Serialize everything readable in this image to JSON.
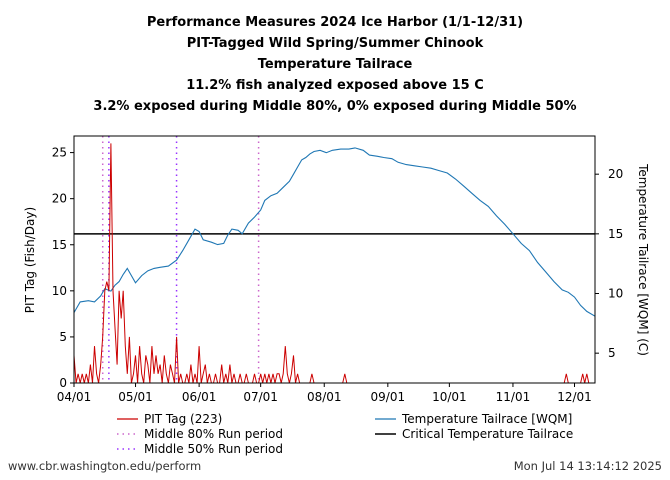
{
  "chart_data": {
    "type": "line",
    "title_lines": [
      "Performance Measures 2024 Ice Harbor (1/1-12/31)",
      "PIT-Tagged Wild Spring/Summer Chinook",
      "Temperature Tailrace",
      "11.2% fish analyzed exposed above 15 C",
      "3.2% exposed during Middle 80%, 0% exposed during Middle 50%"
    ],
    "ylabel_left": "PIT Tag (Fish/Day)",
    "ylabel_right": "Temperature Tailrace [WQM] (C)",
    "x_ticks": [
      "04/01",
      "05/01",
      "06/01",
      "07/01",
      "08/01",
      "09/01",
      "10/01",
      "11/01",
      "12/01"
    ],
    "x_range": [
      "2024-04-01",
      "2024-12-11"
    ],
    "ylim_left": [
      0,
      26.8
    ],
    "yticks_left": [
      0,
      5,
      10,
      15,
      20,
      25
    ],
    "ylim_right": [
      2.5,
      23.2
    ],
    "yticks_right": [
      5,
      10,
      15,
      20
    ],
    "grid": false,
    "legend_position": "bottom",
    "colors": {
      "pit": "#cc0000",
      "temp": "#1f77b4",
      "critical": "#000000",
      "middle80": "#cc66cc",
      "middle50": "#9933ff"
    },
    "legend": {
      "pit": "PIT Tag (223)",
      "middle80": "Middle 80% Run period",
      "middle50": "Middle 50% Run period",
      "temp": "Temperature Tailrace [WQM]",
      "critical": "Critical Temperature Tailrace"
    },
    "critical_temperature": 15,
    "middle80_period": [
      "2024-04-15",
      "2024-06-30"
    ],
    "middle50_period": [
      "2024-04-18",
      "2024-05-21"
    ],
    "temperature_series": {
      "name": "Temperature Tailrace [WQM]",
      "points": [
        [
          "2024-04-01",
          8.4
        ],
        [
          "2024-04-04",
          9.3
        ],
        [
          "2024-04-08",
          9.4
        ],
        [
          "2024-04-11",
          9.3
        ],
        [
          "2024-04-14",
          9.8
        ],
        [
          "2024-04-16",
          10.4
        ],
        [
          "2024-04-19",
          10.2
        ],
        [
          "2024-04-21",
          10.7
        ],
        [
          "2024-04-23",
          11.0
        ],
        [
          "2024-04-25",
          11.6
        ],
        [
          "2024-04-27",
          12.1
        ],
        [
          "2024-04-29",
          11.5
        ],
        [
          "2024-05-01",
          10.9
        ],
        [
          "2024-05-04",
          11.5
        ],
        [
          "2024-05-07",
          11.9
        ],
        [
          "2024-05-10",
          12.1
        ],
        [
          "2024-05-13",
          12.2
        ],
        [
          "2024-05-17",
          12.3
        ],
        [
          "2024-05-21",
          12.8
        ],
        [
          "2024-05-24",
          13.6
        ],
        [
          "2024-05-27",
          14.5
        ],
        [
          "2024-05-30",
          15.4
        ],
        [
          "2024-06-01",
          15.2
        ],
        [
          "2024-06-03",
          14.5
        ],
        [
          "2024-06-07",
          14.3
        ],
        [
          "2024-06-10",
          14.1
        ],
        [
          "2024-06-13",
          14.2
        ],
        [
          "2024-06-15",
          14.9
        ],
        [
          "2024-06-17",
          15.4
        ],
        [
          "2024-06-20",
          15.3
        ],
        [
          "2024-06-22",
          15.0
        ],
        [
          "2024-06-25",
          15.9
        ],
        [
          "2024-06-28",
          16.4
        ],
        [
          "2024-07-01",
          17.0
        ],
        [
          "2024-07-03",
          17.8
        ],
        [
          "2024-07-06",
          18.2
        ],
        [
          "2024-07-09",
          18.4
        ],
        [
          "2024-07-12",
          18.9
        ],
        [
          "2024-07-15",
          19.4
        ],
        [
          "2024-07-17",
          20.0
        ],
        [
          "2024-07-19",
          20.6
        ],
        [
          "2024-07-21",
          21.2
        ],
        [
          "2024-07-23",
          21.4
        ],
        [
          "2024-07-25",
          21.7
        ],
        [
          "2024-07-27",
          21.9
        ],
        [
          "2024-07-30",
          22.0
        ],
        [
          "2024-08-02",
          21.8
        ],
        [
          "2024-08-05",
          22.0
        ],
        [
          "2024-08-09",
          22.1
        ],
        [
          "2024-08-13",
          22.1
        ],
        [
          "2024-08-16",
          22.2
        ],
        [
          "2024-08-20",
          22.0
        ],
        [
          "2024-08-23",
          21.6
        ],
        [
          "2024-08-27",
          21.5
        ],
        [
          "2024-08-30",
          21.4
        ],
        [
          "2024-09-03",
          21.3
        ],
        [
          "2024-09-06",
          21.0
        ],
        [
          "2024-09-10",
          20.8
        ],
        [
          "2024-09-14",
          20.7
        ],
        [
          "2024-09-18",
          20.6
        ],
        [
          "2024-09-22",
          20.5
        ],
        [
          "2024-09-26",
          20.3
        ],
        [
          "2024-09-30",
          20.1
        ],
        [
          "2024-10-04",
          19.6
        ],
        [
          "2024-10-08",
          19.0
        ],
        [
          "2024-10-12",
          18.4
        ],
        [
          "2024-10-16",
          17.8
        ],
        [
          "2024-10-20",
          17.3
        ],
        [
          "2024-10-24",
          16.5
        ],
        [
          "2024-10-28",
          15.8
        ],
        [
          "2024-11-01",
          15.0
        ],
        [
          "2024-11-05",
          14.2
        ],
        [
          "2024-11-09",
          13.6
        ],
        [
          "2024-11-13",
          12.6
        ],
        [
          "2024-11-17",
          11.8
        ],
        [
          "2024-11-21",
          11.0
        ],
        [
          "2024-11-25",
          10.3
        ],
        [
          "2024-11-28",
          10.1
        ],
        [
          "2024-12-01",
          9.7
        ],
        [
          "2024-12-04",
          9.0
        ],
        [
          "2024-12-07",
          8.5
        ],
        [
          "2024-12-11",
          8.1
        ]
      ]
    },
    "pit_series": {
      "name": "PIT Tag (223)",
      "points": [
        [
          "2024-04-01",
          3
        ],
        [
          "2024-04-02",
          0
        ],
        [
          "2024-04-03",
          1
        ],
        [
          "2024-04-04",
          0
        ],
        [
          "2024-04-05",
          1
        ],
        [
          "2024-04-06",
          0
        ],
        [
          "2024-04-07",
          1
        ],
        [
          "2024-04-08",
          0
        ],
        [
          "2024-04-09",
          2
        ],
        [
          "2024-04-10",
          0
        ],
        [
          "2024-04-11",
          4
        ],
        [
          "2024-04-12",
          1
        ],
        [
          "2024-04-13",
          0
        ],
        [
          "2024-04-14",
          2
        ],
        [
          "2024-04-15",
          5
        ],
        [
          "2024-04-16",
          10
        ],
        [
          "2024-04-17",
          11
        ],
        [
          "2024-04-18",
          10
        ],
        [
          "2024-04-19",
          26
        ],
        [
          "2024-04-20",
          10
        ],
        [
          "2024-04-21",
          6
        ],
        [
          "2024-04-22",
          2
        ],
        [
          "2024-04-23",
          10
        ],
        [
          "2024-04-24",
          7
        ],
        [
          "2024-04-25",
          10
        ],
        [
          "2024-04-26",
          4
        ],
        [
          "2024-04-27",
          1
        ],
        [
          "2024-04-28",
          5
        ],
        [
          "2024-04-29",
          0
        ],
        [
          "2024-04-30",
          1
        ],
        [
          "2024-05-01",
          3
        ],
        [
          "2024-05-02",
          0
        ],
        [
          "2024-05-03",
          4
        ],
        [
          "2024-05-04",
          1
        ],
        [
          "2024-05-05",
          0
        ],
        [
          "2024-05-06",
          3
        ],
        [
          "2024-05-07",
          2
        ],
        [
          "2024-05-08",
          0
        ],
        [
          "2024-05-09",
          4
        ],
        [
          "2024-05-10",
          1
        ],
        [
          "2024-05-11",
          3
        ],
        [
          "2024-05-12",
          1
        ],
        [
          "2024-05-13",
          2
        ],
        [
          "2024-05-14",
          0
        ],
        [
          "2024-05-15",
          3
        ],
        [
          "2024-05-16",
          1
        ],
        [
          "2024-05-17",
          0
        ],
        [
          "2024-05-18",
          2
        ],
        [
          "2024-05-19",
          1
        ],
        [
          "2024-05-20",
          0
        ],
        [
          "2024-05-21",
          5
        ],
        [
          "2024-05-22",
          0
        ],
        [
          "2024-05-23",
          1
        ],
        [
          "2024-05-24",
          0
        ],
        [
          "2024-05-25",
          0
        ],
        [
          "2024-05-26",
          1
        ],
        [
          "2024-05-27",
          0
        ],
        [
          "2024-05-28",
          2
        ],
        [
          "2024-05-29",
          0
        ],
        [
          "2024-05-30",
          1
        ],
        [
          "2024-05-31",
          0
        ],
        [
          "2024-06-01",
          4
        ],
        [
          "2024-06-02",
          0
        ],
        [
          "2024-06-03",
          1
        ],
        [
          "2024-06-04",
          2
        ],
        [
          "2024-06-05",
          0
        ],
        [
          "2024-06-06",
          1
        ],
        [
          "2024-06-07",
          0
        ],
        [
          "2024-06-08",
          0
        ],
        [
          "2024-06-09",
          1
        ],
        [
          "2024-06-10",
          0
        ],
        [
          "2024-06-11",
          0
        ],
        [
          "2024-06-12",
          2
        ],
        [
          "2024-06-13",
          0
        ],
        [
          "2024-06-14",
          1
        ],
        [
          "2024-06-15",
          0
        ],
        [
          "2024-06-16",
          2
        ],
        [
          "2024-06-17",
          0
        ],
        [
          "2024-06-18",
          1
        ],
        [
          "2024-06-19",
          0
        ],
        [
          "2024-06-20",
          0
        ],
        [
          "2024-06-21",
          1
        ],
        [
          "2024-06-22",
          0
        ],
        [
          "2024-06-23",
          0
        ],
        [
          "2024-06-24",
          1
        ],
        [
          "2024-06-25",
          0
        ],
        [
          "2024-06-26",
          0
        ],
        [
          "2024-06-27",
          0
        ],
        [
          "2024-06-28",
          1
        ],
        [
          "2024-06-29",
          0
        ],
        [
          "2024-06-30",
          0
        ],
        [
          "2024-07-01",
          1
        ],
        [
          "2024-07-02",
          0
        ],
        [
          "2024-07-03",
          1
        ],
        [
          "2024-07-04",
          0
        ],
        [
          "2024-07-05",
          1
        ],
        [
          "2024-07-06",
          0
        ],
        [
          "2024-07-07",
          1
        ],
        [
          "2024-07-08",
          0
        ],
        [
          "2024-07-09",
          1
        ],
        [
          "2024-07-10",
          1
        ],
        [
          "2024-07-11",
          0
        ],
        [
          "2024-07-12",
          1
        ],
        [
          "2024-07-13",
          4
        ],
        [
          "2024-07-14",
          1
        ],
        [
          "2024-07-15",
          0
        ],
        [
          "2024-07-16",
          1
        ],
        [
          "2024-07-17",
          3
        ],
        [
          "2024-07-18",
          0
        ],
        [
          "2024-07-19",
          1
        ],
        [
          "2024-07-20",
          0
        ],
        [
          "2024-07-25",
          0
        ],
        [
          "2024-07-26",
          1
        ],
        [
          "2024-07-27",
          0
        ],
        [
          "2024-08-10",
          0
        ],
        [
          "2024-08-11",
          1
        ],
        [
          "2024-08-12",
          0
        ],
        [
          "2024-11-26",
          0
        ],
        [
          "2024-11-27",
          1
        ],
        [
          "2024-11-28",
          0
        ],
        [
          "2024-12-04",
          0
        ],
        [
          "2024-12-05",
          1
        ],
        [
          "2024-12-06",
          0
        ],
        [
          "2024-12-07",
          1
        ],
        [
          "2024-12-08",
          0
        ]
      ]
    }
  },
  "footer": {
    "url": "www.cbr.washington.edu/perform",
    "timestamp": "Mon Jul 14 13:14:12 2025"
  }
}
